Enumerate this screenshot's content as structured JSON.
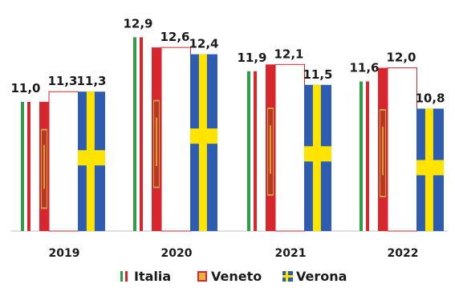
{
  "chart_data": {
    "type": "bar",
    "title": "",
    "xlabel": "",
    "ylabel": "",
    "categories": [
      "2019",
      "2020",
      "2021",
      "2022"
    ],
    "ylim": [
      7.2,
      13.5
    ],
    "grid": false,
    "legend_position": "bottom",
    "series": [
      {
        "name": "Italia",
        "values": [
          11.0,
          12.9,
          11.9,
          11.6
        ],
        "labels": [
          "11,0",
          "12,9",
          "11,9",
          "11,6"
        ],
        "color": "#2e9e46",
        "pattern": "italian-flag"
      },
      {
        "name": "Veneto",
        "values": [
          11.0,
          12.6,
          12.1,
          12.0
        ],
        "labels": [
          "",
          "12,6",
          "12,1",
          "12,0"
        ],
        "color": "#d7262e",
        "pattern": "veneto-flag"
      },
      {
        "name": "Verona",
        "values": [
          11.3,
          12.4,
          11.5,
          10.8
        ],
        "labels": [
          "11,3",
          "12,4",
          "11,5",
          "10,8"
        ],
        "color": "#2d5cb0",
        "pattern": "swedish-style-flag"
      }
    ],
    "extra_labels": [
      {
        "category": "2019",
        "text": "11,3"
      }
    ]
  }
}
